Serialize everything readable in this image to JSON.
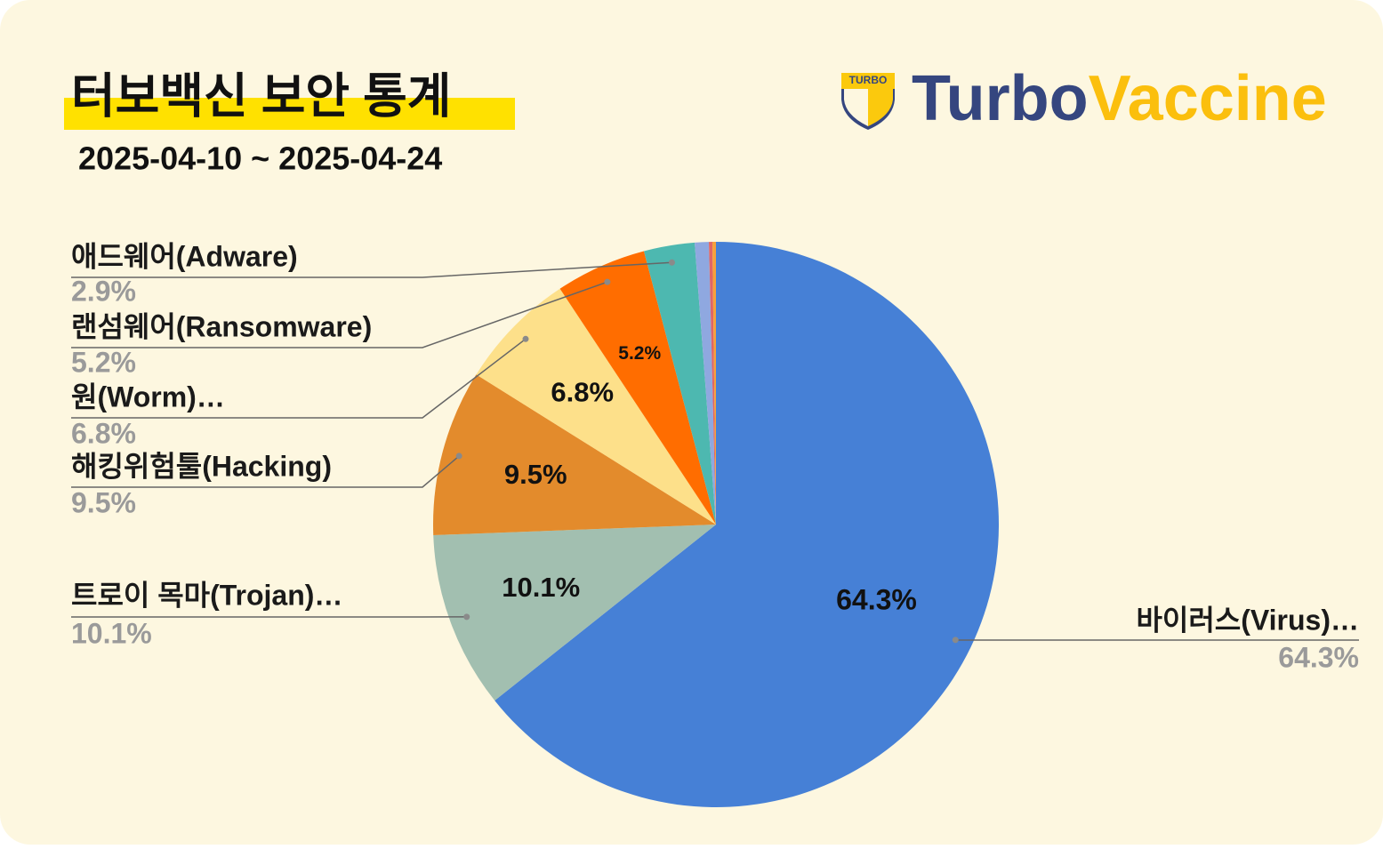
{
  "header": {
    "title": "터보백신 보안 통계",
    "date_range": "2025-04-10 ~ 2025-04-24",
    "logo_badge": "TURBO",
    "brand_turbo": "Turbo",
    "brand_vaccine": "Vaccine"
  },
  "chart_data": {
    "type": "pie",
    "categories": [
      "바이러스(Virus)…",
      "트로이 목마(Trojan)…",
      "해킹위험툴(Hacking)",
      "원(Worm)…",
      "랜섬웨어(Ransomware)",
      "애드웨어(Adware)",
      null,
      null,
      null
    ],
    "values": [
      64.3,
      10.1,
      9.5,
      6.8,
      5.2,
      2.9,
      0.8,
      0.2,
      0.2
    ],
    "value_labels": [
      "64.3%",
      "10.1%",
      "9.5%",
      "6.8%",
      "5.2%",
      "2.9%",
      null,
      null,
      null
    ],
    "colors": [
      "#4680d6",
      "#a2bfb0",
      "#e38b2c",
      "#fde08a",
      "#ff6d00",
      "#4db8b0",
      "#8fa8e0",
      "#e06666",
      "#f6a13b"
    ]
  }
}
